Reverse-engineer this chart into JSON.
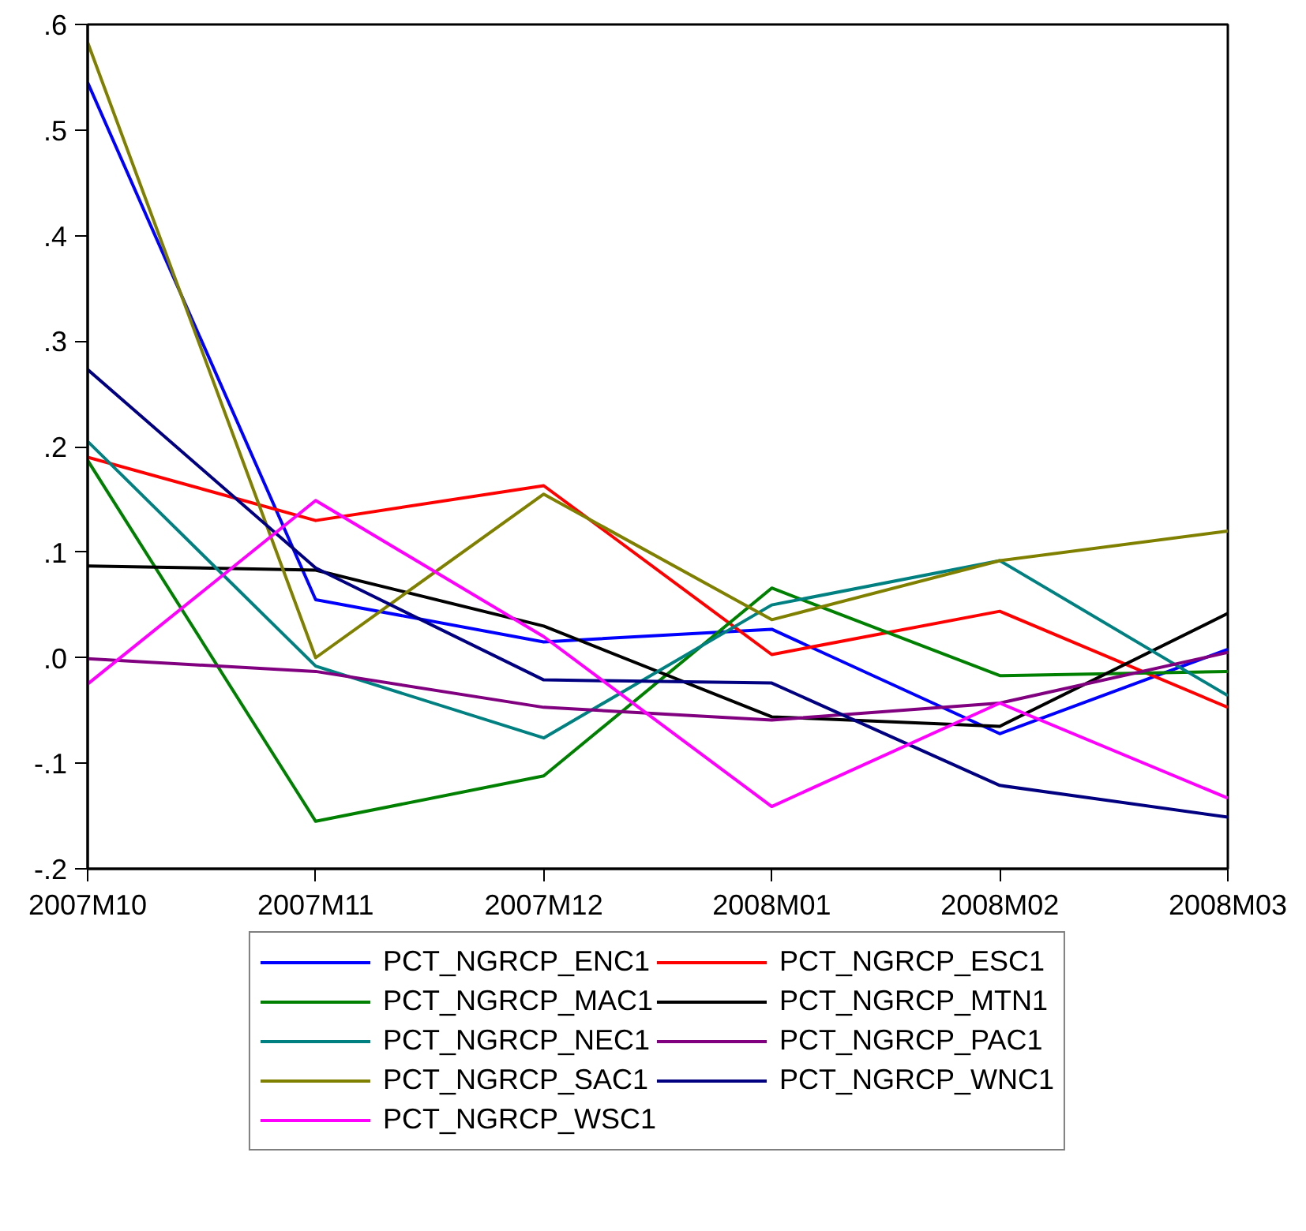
{
  "chart_data": {
    "type": "line",
    "categories": [
      "2007M10",
      "2007M11",
      "2007M12",
      "2008M01",
      "2008M02",
      "2008M03"
    ],
    "ylim": [
      -0.2,
      0.6
    ],
    "yticks": [
      {
        "value": -0.2,
        "label": "-.2"
      },
      {
        "value": -0.1,
        "label": "-.1"
      },
      {
        "value": 0,
        "label": ".0"
      },
      {
        "value": 0.1,
        "label": ".1"
      },
      {
        "value": 0.2,
        "label": ".2"
      },
      {
        "value": 0.3,
        "label": ".3"
      },
      {
        "value": 0.4,
        "label": ".4"
      },
      {
        "value": 0.5,
        "label": ".5"
      },
      {
        "value": 0.6,
        "label": ".6"
      }
    ],
    "grid": false,
    "legend": "bottom",
    "marker": "none",
    "line_style": "solid",
    "series": [
      {
        "name": "PCT_NGRCP_ENC1",
        "color": "#0000ff",
        "values": [
          0.545,
          0.055,
          0.015,
          0.027,
          -0.072,
          0.008
        ]
      },
      {
        "name": "PCT_NGRCP_ESC1",
        "color": "#ff0000",
        "values": [
          0.19,
          0.13,
          0.163,
          0.003,
          0.044,
          -0.047
        ]
      },
      {
        "name": "PCT_NGRCP_MAC1",
        "color": "#008000",
        "values": [
          0.187,
          -0.155,
          -0.112,
          0.066,
          -0.017,
          -0.013
        ]
      },
      {
        "name": "PCT_NGRCP_MTN1",
        "color": "#000000",
        "values": [
          0.087,
          0.083,
          0.03,
          -0.056,
          -0.065,
          0.042
        ]
      },
      {
        "name": "PCT_NGRCP_NEC1",
        "color": "#008080",
        "values": [
          0.205,
          -0.008,
          -0.076,
          0.05,
          0.092,
          -0.036
        ]
      },
      {
        "name": "PCT_NGRCP_PAC1",
        "color": "#800080",
        "values": [
          -0.001,
          -0.013,
          -0.047,
          -0.059,
          -0.043,
          0.005
        ]
      },
      {
        "name": "PCT_NGRCP_SAC1",
        "color": "#808000",
        "values": [
          0.583,
          0.0,
          0.155,
          0.036,
          0.092,
          0.12
        ]
      },
      {
        "name": "PCT_NGRCP_WNC1",
        "color": "#000080",
        "values": [
          0.273,
          0.085,
          -0.021,
          -0.024,
          -0.121,
          -0.151
        ]
      },
      {
        "name": "PCT_NGRCP_WSC1",
        "color": "#ff00ff",
        "values": [
          -0.025,
          0.149,
          0.02,
          -0.141,
          -0.043,
          -0.133
        ]
      }
    ]
  }
}
